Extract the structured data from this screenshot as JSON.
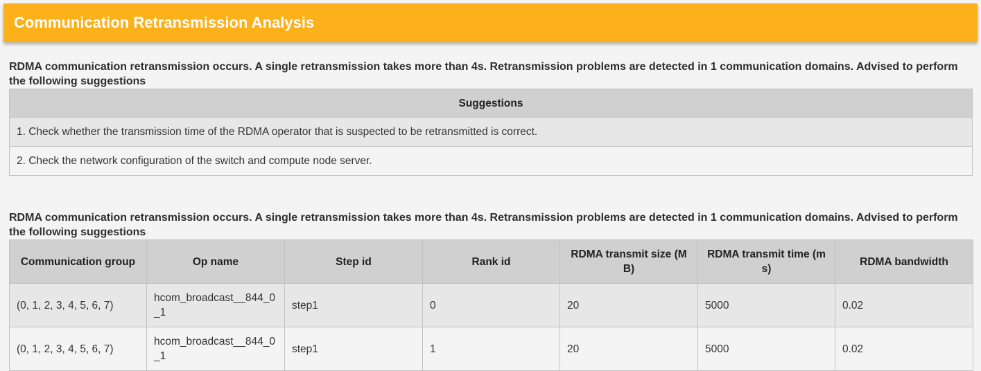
{
  "header": {
    "title": "Communication Retransmission Analysis"
  },
  "sections": [
    {
      "description": "RDMA communication retransmission occurs. A single retransmission takes more than 4s. Retransmission problems are detected in 1 communication domains. Advised to perform the following suggestions",
      "table": {
        "header": "Suggestions",
        "rows": [
          "1. Check whether the transmission time of the RDMA operator that is suspected to be retransmitted is correct.",
          "2. Check the network configuration of the switch and compute node server."
        ]
      }
    },
    {
      "description": "RDMA communication retransmission occurs. A single retransmission takes more than 4s. Retransmission problems are detected in 1 communication domains. Advised to perform the following suggestions",
      "table": {
        "columns": [
          "Communication group",
          "Op name",
          "Step id",
          "Rank id",
          "RDMA transmit size (MB)",
          "RDMA transmit time (ms)",
          "RDMA bandwidth"
        ],
        "rows": [
          [
            "(0, 1, 2, 3, 4, 5, 6, 7)",
            "hcom_broadcast__844_0_1",
            "step1",
            "0",
            "20",
            "5000",
            "0.02"
          ],
          [
            "(0, 1, 2, 3, 4, 5, 6, 7)",
            "hcom_broadcast__844_0_1",
            "step1",
            "1",
            "20",
            "5000",
            "0.02"
          ]
        ]
      }
    }
  ]
}
